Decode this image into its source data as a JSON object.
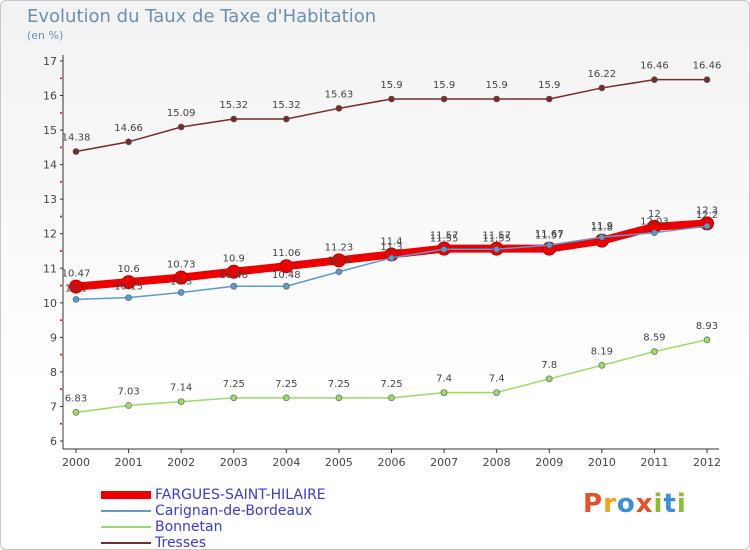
{
  "title": "Evolution du Taux de Taxe d'Habitation",
  "unit": "(en %)",
  "logo": {
    "text": "Proxiti",
    "colors": [
      "#e8502a",
      "#f2a21b",
      "#3a8fd8",
      "#e8502a",
      "#8bbd2d",
      "#3a8fd8",
      "#8bbd2d"
    ]
  },
  "chart_data": {
    "type": "line",
    "x": [
      "2000",
      "2001",
      "2002",
      "2003",
      "2004",
      "2005",
      "2006",
      "2007",
      "2008",
      "2009",
      "2010",
      "2011",
      "2012"
    ],
    "ylim": [
      6,
      17
    ],
    "yticks": [
      "6",
      "7",
      "8",
      "9",
      "10",
      "11",
      "12",
      "13",
      "14",
      "15",
      "16",
      "17"
    ],
    "grid": false,
    "series": [
      {
        "name": "FARGUES-SAINT-HILAIRE",
        "color": "#ee0000",
        "values": [
          10.47,
          10.6,
          10.73,
          10.9,
          11.06,
          11.23,
          11.4,
          11.57,
          11.57,
          11.57,
          11.8,
          12.2,
          12.3
        ],
        "labels": [
          "10.47",
          "10.6",
          "10.73",
          "10.9",
          "11.06",
          "11.23",
          "11.4",
          "11.57",
          "11.57",
          "11.57",
          "11.8",
          "12",
          "12.3"
        ]
      },
      {
        "name": "Carignan-de-Bordeaux",
        "color": "#5b9bd5",
        "values": [
          10.1,
          10.15,
          10.3,
          10.48,
          10.48,
          10.9,
          11.3,
          11.55,
          11.55,
          11.67,
          11.9,
          12.03,
          12.22
        ],
        "labels": [
          "10.1",
          "10.15",
          "10.3",
          "10.48",
          "10.48",
          "10.9",
          "11.3",
          "11.55",
          "11.55",
          "11.67",
          "11.9",
          "12.03",
          "12.2"
        ]
      },
      {
        "name": "Bonnetan",
        "color": "#99dd66",
        "values": [
          6.83,
          7.03,
          7.14,
          7.25,
          7.25,
          7.25,
          7.25,
          7.4,
          7.4,
          7.8,
          8.19,
          8.59,
          8.93
        ],
        "labels": [
          "6.83",
          "7.03",
          "7.14",
          "7.25",
          "7.25",
          "7.25",
          "7.25",
          "7.4",
          "7.4",
          "7.8",
          "8.19",
          "8.59",
          "8.93"
        ]
      },
      {
        "name": "Tresses",
        "color": "#7a2a2a",
        "values": [
          14.38,
          14.66,
          15.09,
          15.32,
          15.32,
          15.63,
          15.9,
          15.9,
          15.9,
          15.9,
          16.22,
          16.46,
          16.46
        ],
        "labels": [
          "14.38",
          "14.66",
          "15.09",
          "15.32",
          "15.32",
          "15.63",
          "15.9",
          "15.9",
          "15.9",
          "15.9",
          "16.22",
          "16.46",
          "16.46"
        ]
      }
    ]
  }
}
